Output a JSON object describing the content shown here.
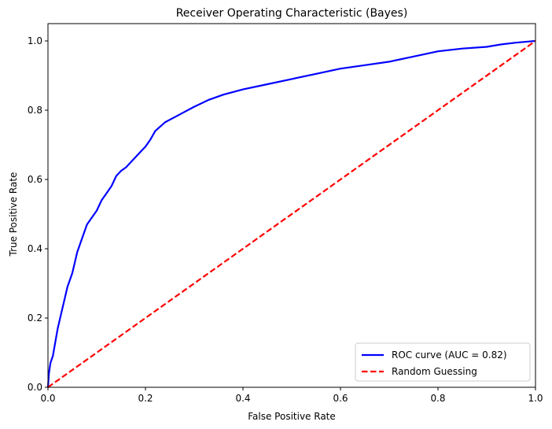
{
  "chart_data": {
    "type": "line",
    "title": "Receiver Operating Characteristic (Bayes)",
    "xlabel": "False Positive Rate",
    "ylabel": "True Positive Rate",
    "xlim": [
      0,
      1.0
    ],
    "ylim": [
      0,
      1.05
    ],
    "xticks": [
      0.0,
      0.2,
      0.4,
      0.6,
      0.8,
      1.0
    ],
    "xtick_labels": [
      "0.0",
      "0.2",
      "0.4",
      "0.6",
      "0.8",
      "1.0"
    ],
    "yticks": [
      0.0,
      0.2,
      0.4,
      0.6,
      0.8,
      1.0
    ],
    "ytick_labels": [
      "0.0",
      "0.2",
      "0.4",
      "0.6",
      "0.8",
      "1.0"
    ],
    "grid": false,
    "legend_position": "bottom-right",
    "series": [
      {
        "name": "ROC curve (AUC = 0.82)",
        "color": "#0000ff",
        "style": "solid",
        "x": [
          0.0,
          0.002,
          0.005,
          0.01,
          0.015,
          0.02,
          0.025,
          0.03,
          0.035,
          0.04,
          0.045,
          0.05,
          0.06,
          0.07,
          0.08,
          0.09,
          0.1,
          0.11,
          0.12,
          0.13,
          0.14,
          0.15,
          0.16,
          0.17,
          0.18,
          0.19,
          0.2,
          0.21,
          0.22,
          0.24,
          0.26,
          0.28,
          0.3,
          0.33,
          0.36,
          0.4,
          0.45,
          0.5,
          0.55,
          0.6,
          0.65,
          0.7,
          0.75,
          0.8,
          0.85,
          0.9,
          0.93,
          0.96,
          1.0
        ],
        "y": [
          0.0,
          0.04,
          0.07,
          0.09,
          0.13,
          0.17,
          0.2,
          0.23,
          0.26,
          0.29,
          0.31,
          0.33,
          0.39,
          0.43,
          0.47,
          0.49,
          0.51,
          0.54,
          0.56,
          0.58,
          0.61,
          0.625,
          0.635,
          0.65,
          0.665,
          0.68,
          0.695,
          0.715,
          0.74,
          0.765,
          0.78,
          0.795,
          0.81,
          0.83,
          0.845,
          0.86,
          0.875,
          0.89,
          0.905,
          0.92,
          0.93,
          0.94,
          0.955,
          0.97,
          0.978,
          0.983,
          0.99,
          0.995,
          1.0
        ]
      },
      {
        "name": "Random Guessing",
        "color": "#ff0000",
        "style": "dashed",
        "x": [
          0.0,
          1.0
        ],
        "y": [
          0.0,
          1.0
        ]
      }
    ]
  }
}
